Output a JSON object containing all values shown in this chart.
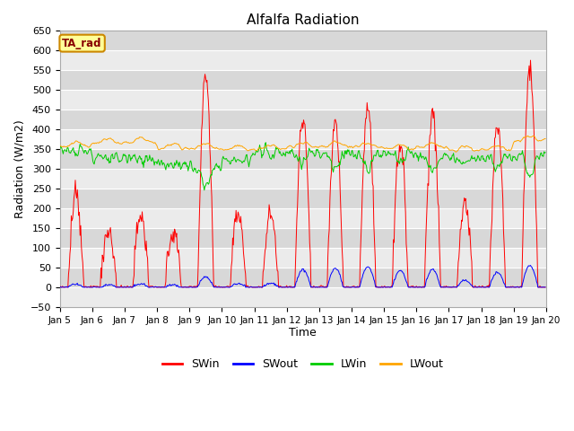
{
  "title": "Alfalfa Radiation",
  "xlabel": "Time",
  "ylabel": "Radiation (W/m2)",
  "ylim": [
    -50,
    625
  ],
  "legend_labels": [
    "SWin",
    "SWout",
    "LWin",
    "LWout"
  ],
  "legend_colors": [
    "#ff0000",
    "#0000ff",
    "#00cc00",
    "#ffa500"
  ],
  "tag_label": "TA_rad",
  "tag_bg": "#ffff99",
  "tag_border": "#cc8800",
  "tag_text_color": "#880000",
  "n_days": 15,
  "start_day": 5,
  "end_day": 20,
  "swin_peaks": [
    230,
    150,
    185,
    145,
    535,
    185,
    185,
    435,
    415,
    455,
    370,
    440,
    210,
    415,
    555
  ],
  "swout_peaks": [
    8,
    7,
    8,
    6,
    27,
    10,
    10,
    45,
    47,
    52,
    42,
    45,
    18,
    38,
    55
  ],
  "lwin_base": [
    345,
    330,
    325,
    308,
    305,
    325,
    340,
    340,
    335,
    335,
    340,
    330,
    325,
    330,
    330
  ],
  "lwout_base": [
    360,
    368,
    370,
    355,
    355,
    350,
    352,
    358,
    360,
    357,
    352,
    358,
    350,
    352,
    375
  ]
}
